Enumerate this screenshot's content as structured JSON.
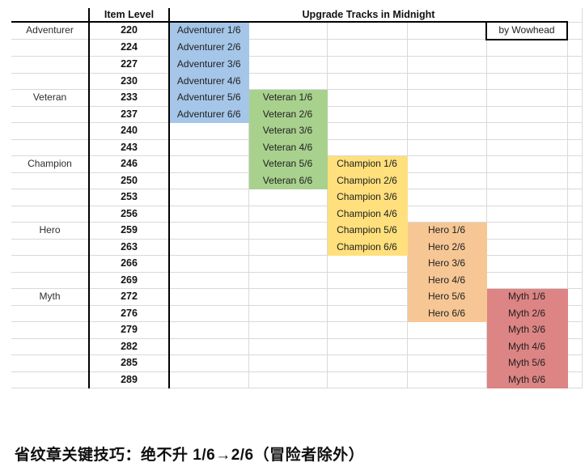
{
  "header": {
    "item_level_label": "Item Level",
    "title": "Upgrade Tracks in Midnight",
    "credit": "by Wowhead"
  },
  "colors": {
    "adventurer": "#A5C6E8",
    "veteran": "#A8D18E",
    "champion": "#FFE07C",
    "hero": "#F6C795",
    "myth": "#DD8484"
  },
  "column_order": [
    "adventurer",
    "veteran",
    "champion",
    "hero",
    "myth"
  ],
  "rows": [
    {
      "track": "Adventurer",
      "level": "220",
      "c1": "Adventurer 1/6",
      "c2": "",
      "c3": "",
      "c4": "",
      "c5": ""
    },
    {
      "track": "",
      "level": "224",
      "c1": "Adventurer 2/6",
      "c2": "",
      "c3": "",
      "c4": "",
      "c5": ""
    },
    {
      "track": "",
      "level": "227",
      "c1": "Adventurer 3/6",
      "c2": "",
      "c3": "",
      "c4": "",
      "c5": ""
    },
    {
      "track": "",
      "level": "230",
      "c1": "Adventurer 4/6",
      "c2": "",
      "c3": "",
      "c4": "",
      "c5": ""
    },
    {
      "track": "Veteran",
      "level": "233",
      "c1": "Adventurer 5/6",
      "c2": "Veteran 1/6",
      "c3": "",
      "c4": "",
      "c5": ""
    },
    {
      "track": "",
      "level": "237",
      "c1": "Adventurer 6/6",
      "c2": "Veteran 2/6",
      "c3": "",
      "c4": "",
      "c5": ""
    },
    {
      "track": "",
      "level": "240",
      "c1": "",
      "c2": "Veteran 3/6",
      "c3": "",
      "c4": "",
      "c5": ""
    },
    {
      "track": "",
      "level": "243",
      "c1": "",
      "c2": "Veteran 4/6",
      "c3": "",
      "c4": "",
      "c5": ""
    },
    {
      "track": "Champion",
      "level": "246",
      "c1": "",
      "c2": "Veteran 5/6",
      "c3": "Champion 1/6",
      "c4": "",
      "c5": ""
    },
    {
      "track": "",
      "level": "250",
      "c1": "",
      "c2": "Veteran 6/6",
      "c3": "Champion 2/6",
      "c4": "",
      "c5": ""
    },
    {
      "track": "",
      "level": "253",
      "c1": "",
      "c2": "",
      "c3": "Champion 3/6",
      "c4": "",
      "c5": ""
    },
    {
      "track": "",
      "level": "256",
      "c1": "",
      "c2": "",
      "c3": "Champion 4/6",
      "c4": "",
      "c5": ""
    },
    {
      "track": "Hero",
      "level": "259",
      "c1": "",
      "c2": "",
      "c3": "Champion 5/6",
      "c4": "Hero 1/6",
      "c5": ""
    },
    {
      "track": "",
      "level": "263",
      "c1": "",
      "c2": "",
      "c3": "Champion 6/6",
      "c4": "Hero 2/6",
      "c5": ""
    },
    {
      "track": "",
      "level": "266",
      "c1": "",
      "c2": "",
      "c3": "",
      "c4": "Hero 3/6",
      "c5": ""
    },
    {
      "track": "",
      "level": "269",
      "c1": "",
      "c2": "",
      "c3": "",
      "c4": "Hero 4/6",
      "c5": ""
    },
    {
      "track": "Myth",
      "level": "272",
      "c1": "",
      "c2": "",
      "c3": "",
      "c4": "Hero 5/6",
      "c5": "Myth 1/6"
    },
    {
      "track": "",
      "level": "276",
      "c1": "",
      "c2": "",
      "c3": "",
      "c4": "Hero 6/6",
      "c5": "Myth 2/6"
    },
    {
      "track": "",
      "level": "279",
      "c1": "",
      "c2": "",
      "c3": "",
      "c4": "",
      "c5": "Myth 3/6"
    },
    {
      "track": "",
      "level": "282",
      "c1": "",
      "c2": "",
      "c3": "",
      "c4": "",
      "c5": "Myth 4/6"
    },
    {
      "track": "",
      "level": "285",
      "c1": "",
      "c2": "",
      "c3": "",
      "c4": "",
      "c5": "Myth 5/6"
    },
    {
      "track": "",
      "level": "289",
      "c1": "",
      "c2": "",
      "c3": "",
      "c4": "",
      "c5": "Myth 6/6"
    }
  ],
  "footer_note": "省纹章关键技巧：绝不升 1/6→2/6（冒险者除外）"
}
